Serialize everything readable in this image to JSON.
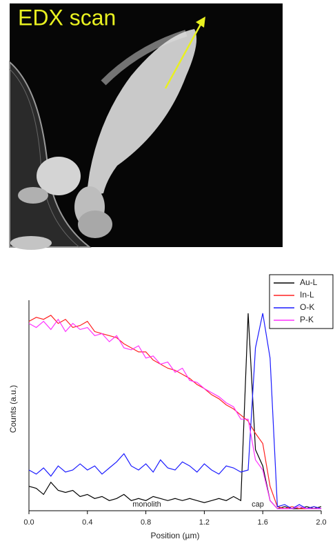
{
  "image": {
    "label": "EDX scan"
  },
  "chart_data": {
    "type": "line",
    "x_label": "Position (µm)",
    "y_label": "Counts (a.u.)",
    "annotations": [
      "monolith",
      "cap"
    ],
    "xlim": [
      0,
      2
    ],
    "ylim": [
      0,
      1
    ],
    "xticks": [
      {
        "value": 0,
        "label": "0.0"
      },
      0.4,
      0.8,
      1.2,
      1.6,
      {
        "value": 2,
        "label": "2.0"
      }
    ],
    "legend": "top-right",
    "x": [
      0,
      0.05,
      0.1,
      0.15,
      0.2,
      0.25,
      0.3,
      0.35,
      0.4,
      0.45,
      0.5,
      0.55,
      0.6,
      0.65,
      0.7,
      0.75,
      0.8,
      0.85,
      0.9,
      0.95,
      1.0,
      1.05,
      1.1,
      1.15,
      1.2,
      1.25,
      1.3,
      1.35,
      1.4,
      1.45,
      1.5,
      1.55,
      1.6,
      1.65,
      1.7,
      1.75,
      1.8,
      1.85,
      1.9,
      1.95,
      2.0
    ],
    "series": [
      {
        "name": "Au-L",
        "color": "#000000",
        "values": [
          0.12,
          0.11,
          0.08,
          0.14,
          0.1,
          0.09,
          0.1,
          0.07,
          0.08,
          0.06,
          0.07,
          0.05,
          0.06,
          0.08,
          0.05,
          0.06,
          0.05,
          0.07,
          0.06,
          0.05,
          0.06,
          0.05,
          0.06,
          0.05,
          0.04,
          0.05,
          0.06,
          0.05,
          0.07,
          0.05,
          0.97,
          0.3,
          0.22,
          0.05,
          0.01,
          0.02,
          0.01,
          0.01,
          0.02,
          0.01,
          0.02
        ]
      },
      {
        "name": "In-L",
        "color": "#ff2020",
        "values": [
          0.93,
          0.95,
          0.94,
          0.96,
          0.92,
          0.94,
          0.9,
          0.91,
          0.93,
          0.88,
          0.87,
          0.86,
          0.85,
          0.82,
          0.8,
          0.78,
          0.78,
          0.74,
          0.72,
          0.7,
          0.69,
          0.67,
          0.65,
          0.62,
          0.6,
          0.57,
          0.55,
          0.52,
          0.5,
          0.47,
          0.44,
          0.38,
          0.33,
          0.12,
          0.02,
          0.01,
          0.02,
          0.01,
          0.01,
          0.02,
          0.01
        ]
      },
      {
        "name": "O-K",
        "color": "#1a1aff",
        "values": [
          0.2,
          0.18,
          0.21,
          0.17,
          0.22,
          0.19,
          0.2,
          0.23,
          0.2,
          0.22,
          0.18,
          0.21,
          0.24,
          0.28,
          0.22,
          0.2,
          0.23,
          0.19,
          0.25,
          0.21,
          0.2,
          0.24,
          0.22,
          0.19,
          0.23,
          0.2,
          0.18,
          0.22,
          0.21,
          0.19,
          0.2,
          0.8,
          0.97,
          0.75,
          0.02,
          0.03,
          0.01,
          0.03,
          0.01,
          0.02,
          0.01
        ]
      },
      {
        "name": "P-K",
        "color": "#ff30ff",
        "values": [
          0.92,
          0.9,
          0.93,
          0.89,
          0.94,
          0.88,
          0.92,
          0.89,
          0.9,
          0.86,
          0.87,
          0.83,
          0.86,
          0.8,
          0.79,
          0.81,
          0.75,
          0.76,
          0.72,
          0.73,
          0.68,
          0.7,
          0.64,
          0.63,
          0.6,
          0.58,
          0.56,
          0.53,
          0.51,
          0.45,
          0.45,
          0.25,
          0.2,
          0.05,
          0.01,
          0.01,
          0.01,
          0.02,
          0.01,
          0.01,
          0.01
        ]
      }
    ]
  }
}
